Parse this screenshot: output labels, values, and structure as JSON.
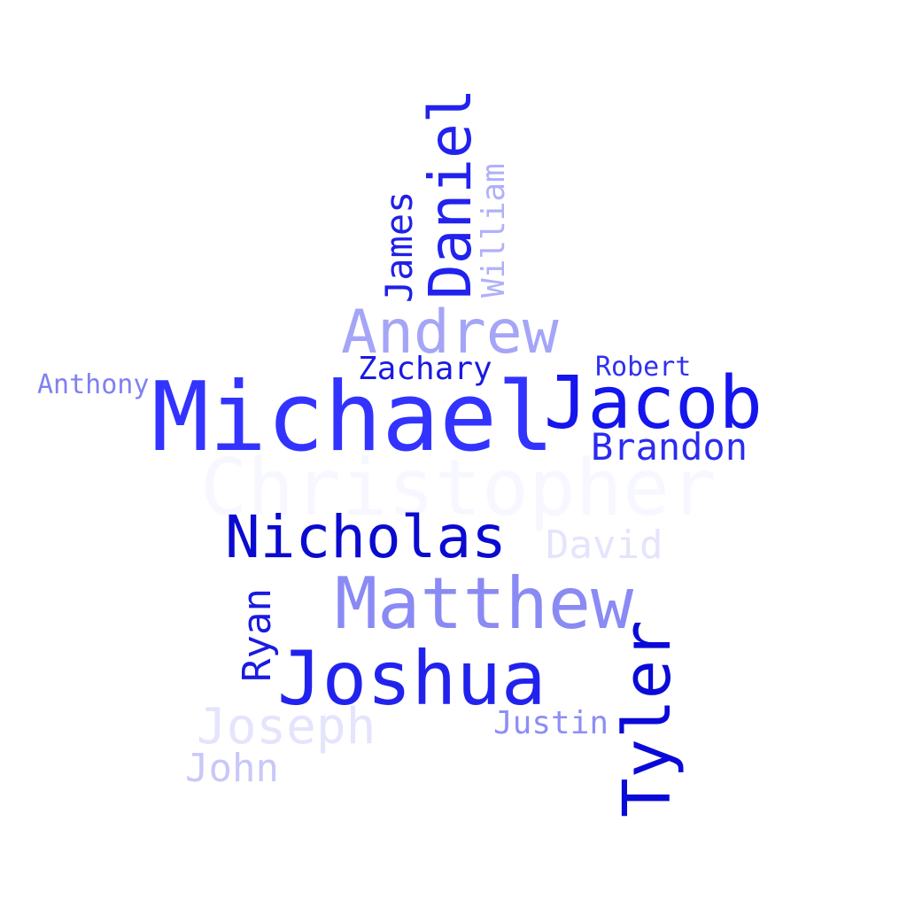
{
  "words": {
    "christopher": {
      "text": "Christopher",
      "color": "#f7f7ff"
    },
    "michael": {
      "text": "Michael",
      "color": "#3333ff"
    },
    "jacob": {
      "text": "Jacob",
      "color": "#1515ee"
    },
    "daniel": {
      "text": "Daniel",
      "color": "#2222ee"
    },
    "andrew": {
      "text": "Andrew",
      "color": "#a5a5f7"
    },
    "nicholas": {
      "text": "Nicholas",
      "color": "#0a0ad0"
    },
    "matthew": {
      "text": "Matthew",
      "color": "#8a8af5"
    },
    "joshua": {
      "text": "Joshua",
      "color": "#2222ee"
    },
    "tyler": {
      "text": "Tyler",
      "color": "#0a0ad8"
    },
    "joseph": {
      "text": "Joseph",
      "color": "#e4e4fc"
    },
    "james": {
      "text": "James",
      "color": "#2020e8"
    },
    "william": {
      "text": "William",
      "color": "#b0b0f8"
    },
    "zachary": {
      "text": "Zachary",
      "color": "#1a1ae0"
    },
    "robert": {
      "text": "Robert",
      "color": "#3030f0"
    },
    "brandon": {
      "text": "Brandon",
      "color": "#2b2bf0"
    },
    "anthony": {
      "text": "Anthony",
      "color": "#8080f2"
    },
    "david": {
      "text": "David",
      "color": "#e4e4fc"
    },
    "ryan": {
      "text": "Ryan",
      "color": "#1a1ae0"
    },
    "john": {
      "text": "John",
      "color": "#c8c8f8"
    },
    "justin": {
      "text": "Justin",
      "color": "#8e8ef5"
    }
  }
}
